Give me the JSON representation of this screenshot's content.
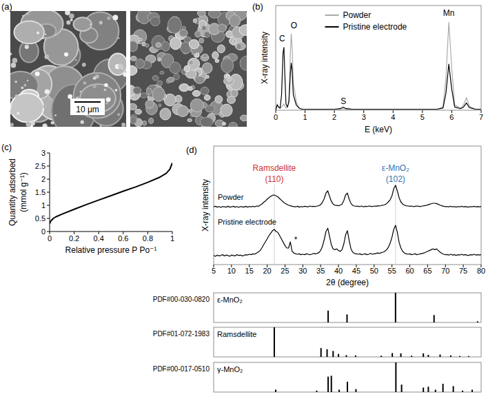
{
  "chart_data": [
    {
      "type": "image",
      "panel_label": "(a)",
      "annotation": "10 μm"
    },
    {
      "type": "line",
      "panel_label": "(b)",
      "x_label": "E (keV)",
      "y_label": "X-ray intensity",
      "x": [
        0,
        0.05,
        0.1,
        0.15,
        0.2,
        0.25,
        0.28,
        0.31,
        0.35,
        0.4,
        0.45,
        0.5,
        0.53,
        0.56,
        0.6,
        0.65,
        0.7,
        0.8,
        0.9,
        1.0,
        1.5,
        2.0,
        2.2,
        2.3,
        2.4,
        2.6,
        3.0,
        4.0,
        5.0,
        5.5,
        5.7,
        5.8,
        5.9,
        6.0,
        6.1,
        6.3,
        6.4,
        6.5,
        6.6,
        6.8,
        7.0
      ],
      "series": [
        {
          "name": "Powder",
          "color": "#aaaaaa",
          "values": [
            0,
            6,
            3,
            2,
            3,
            5,
            6,
            4,
            2,
            3,
            10,
            55,
            73,
            60,
            25,
            18,
            8,
            2,
            1,
            1,
            1,
            1,
            1,
            1.5,
            1,
            1,
            1,
            1,
            1,
            1,
            3,
            30,
            84,
            40,
            5,
            2,
            5,
            12,
            4,
            1,
            1
          ]
        },
        {
          "name": "Pristine electrode",
          "color": "#000000",
          "values": [
            0,
            5,
            3,
            2,
            15,
            55,
            60,
            35,
            6,
            3,
            8,
            35,
            45,
            38,
            15,
            10,
            5,
            2,
            1,
            1,
            1,
            1,
            1.5,
            3,
            1.5,
            1,
            1,
            1,
            1,
            1,
            2,
            16,
            44,
            20,
            3,
            1.5,
            3,
            7,
            2.5,
            1,
            1
          ]
        }
      ],
      "xlim": [
        0,
        7
      ],
      "xticks": [
        0,
        1,
        2,
        3,
        4,
        5,
        6,
        7
      ],
      "ylim": [
        0,
        100
      ],
      "tick_labels": "x",
      "legend": "top",
      "annotations": [
        {
          "text": "C",
          "x": 0.22,
          "y": 66
        },
        {
          "text": "O",
          "x": 0.62,
          "y": 78
        },
        {
          "text": "S",
          "x": 2.31,
          "y": 6
        },
        {
          "text": "Mn",
          "x": 5.9,
          "y": 90
        }
      ]
    },
    {
      "type": "line",
      "panel_label": "(c)",
      "x_label": "Relative pressure P Po⁻¹",
      "y_label": [
        "Quantity adsorbed",
        "(mmol g⁻¹)"
      ],
      "x": [
        0,
        0.01,
        0.03,
        0.05,
        0.1,
        0.2,
        0.3,
        0.4,
        0.5,
        0.6,
        0.7,
        0.8,
        0.9,
        0.95,
        0.98,
        1.0
      ],
      "series": [
        {
          "color": "#000000",
          "values": [
            0.3,
            0.4,
            0.5,
            0.56,
            0.66,
            0.85,
            1.03,
            1.2,
            1.37,
            1.54,
            1.7,
            1.88,
            2.08,
            2.22,
            2.38,
            2.62
          ]
        }
      ],
      "xlim": [
        0,
        1
      ],
      "xticks": [
        0,
        0.2,
        0.4,
        0.6,
        0.8,
        1
      ],
      "ylim": [
        0,
        3
      ],
      "yticks": [
        0,
        0.5,
        1,
        1.5,
        2,
        2.5,
        3
      ]
    },
    {
      "type": "line",
      "panel_label": "(d)",
      "x_label": "2θ (degree)",
      "y_label": "X-ray intensity",
      "x": [
        5,
        5.5,
        6,
        6.5,
        7,
        7.5,
        8,
        8.5,
        9,
        9.5,
        10,
        10.5,
        11,
        11.5,
        12,
        12.5,
        13,
        13.5,
        14,
        14.5,
        15,
        15.5,
        16,
        16.5,
        17,
        17.5,
        18,
        18.5,
        19,
        19.5,
        20,
        20.5,
        21,
        21.5,
        22,
        22.5,
        23,
        23.5,
        24,
        24.5,
        25,
        25.5,
        26,
        26.5,
        27,
        27.5,
        28,
        28.5,
        29,
        29.5,
        30,
        30.5,
        31,
        31.5,
        32,
        32.5,
        33,
        33.5,
        34,
        34.5,
        35,
        35.5,
        36,
        36.5,
        37,
        37.5,
        38,
        38.5,
        39,
        39.5,
        40,
        40.5,
        41,
        41.5,
        42,
        42.5,
        43,
        43.5,
        44,
        44.5,
        45,
        45.5,
        46,
        46.5,
        47,
        47.5,
        48,
        48.5,
        49,
        49.5,
        50,
        50.5,
        51,
        51.5,
        52,
        52.5,
        53,
        53.5,
        54,
        54.5,
        55,
        55.5,
        56,
        56.5,
        57,
        57.5,
        58,
        58.5,
        59,
        59.5,
        60,
        60.5,
        61,
        61.5,
        62,
        62.5,
        63,
        63.5,
        64,
        64.5,
        65,
        65.5,
        66,
        66.5,
        67,
        67.5,
        68,
        68.5,
        69,
        69.5,
        70,
        70.5,
        71,
        71.5,
        72,
        72.5,
        73,
        73.5,
        74,
        74.5,
        75,
        75.5,
        76,
        76.5,
        77,
        77.5,
        78,
        78.5,
        79,
        79.5,
        80
      ],
      "series": [
        {
          "name": "Powder",
          "color": "#000000",
          "values": [
            12,
            14,
            11,
            13,
            10,
            13,
            12,
            11,
            14,
            11,
            12,
            14,
            11,
            13,
            10,
            13,
            12,
            11,
            14,
            11,
            13,
            12,
            14,
            12,
            15,
            14,
            18,
            22,
            28,
            33,
            40,
            45,
            50,
            54,
            55,
            52,
            48,
            42,
            36,
            30,
            25,
            21,
            18,
            16,
            14,
            13,
            12,
            14,
            11,
            13,
            12,
            14,
            13,
            12,
            15,
            13,
            14,
            13,
            15,
            16,
            20,
            28,
            42,
            62,
            70,
            50,
            32,
            22,
            18,
            17,
            16,
            18,
            22,
            35,
            55,
            62,
            40,
            24,
            17,
            15,
            14,
            14,
            13,
            15,
            12,
            14,
            13,
            15,
            14,
            13,
            15,
            14,
            16,
            15,
            17,
            18,
            20,
            24,
            30,
            38,
            52,
            78,
            90,
            70,
            45,
            30,
            22,
            18,
            16,
            15,
            14,
            15,
            13,
            14,
            15,
            14,
            13,
            15,
            16,
            17,
            19,
            21,
            23,
            25,
            25,
            24,
            21,
            18,
            16,
            14,
            13,
            13,
            12,
            14,
            12,
            13,
            11,
            13,
            12,
            14,
            12,
            13,
            12,
            11,
            13,
            12,
            14,
            12,
            13,
            12,
            13
          ]
        },
        {
          "name": "Pristine electrode",
          "color": "#000000",
          "values": [
            12,
            10,
            13,
            11,
            12,
            14,
            11,
            13,
            12,
            10,
            13,
            12,
            11,
            14,
            12,
            13,
            11,
            12,
            14,
            13,
            15,
            14,
            16,
            15,
            18,
            20,
            24,
            30,
            38,
            45,
            52,
            60,
            66,
            72,
            75,
            70,
            68,
            60,
            52,
            44,
            36,
            30,
            30,
            45,
            22,
            18,
            16,
            15,
            16,
            14,
            15,
            14,
            16,
            15,
            14,
            15,
            17,
            16,
            17,
            19,
            24,
            34,
            50,
            70,
            78,
            58,
            38,
            28,
            26,
            28,
            24,
            22,
            26,
            40,
            62,
            72,
            48,
            28,
            20,
            17,
            16,
            15,
            16,
            14,
            15,
            16,
            14,
            15,
            17,
            15,
            16,
            17,
            18,
            17,
            19,
            20,
            22,
            26,
            32,
            42,
            56,
            75,
            85,
            68,
            44,
            30,
            22,
            18,
            16,
            15,
            16,
            14,
            15,
            16,
            14,
            15,
            16,
            17,
            18,
            20,
            22,
            24,
            26,
            28,
            26,
            28,
            24,
            20,
            17,
            15,
            14,
            14,
            13,
            15,
            13,
            14,
            12,
            14,
            13,
            15,
            13,
            14,
            13,
            12,
            14,
            13,
            15,
            13,
            14,
            13,
            14
          ]
        }
      ],
      "xlim": [
        5,
        80
      ],
      "xticks": [
        5,
        10,
        15,
        20,
        25,
        30,
        35,
        40,
        45,
        50,
        55,
        60,
        65,
        70,
        75,
        80
      ],
      "ylim": [
        0,
        100
      ],
      "tick_labels": "x",
      "annotations": [
        {
          "lines": [
            "Ramsdellite",
            "(110)"
          ],
          "x": 22,
          "color": "#d0312d"
        },
        {
          "lines": [
            "ε-MnO₂",
            "(102)"
          ],
          "x": 56,
          "color": "#2e75b6"
        },
        {
          "lines": [
            "*"
          ],
          "x": 28,
          "y": 44,
          "series": 1
        }
      ]
    },
    {
      "type": "stick",
      "label": "PDF#00-030-0820",
      "title": "ε-MnO₂",
      "color": "#000000",
      "x": [
        37.1,
        42.4,
        56.0,
        66.8,
        79.0
      ],
      "values": [
        40,
        27,
        100,
        25,
        4
      ],
      "xlim": [
        5,
        80
      ],
      "ylim": [
        0,
        100
      ],
      "tick_labels": false
    },
    {
      "type": "stick",
      "label": "PDF#01-072-1983",
      "title": "Ramsdellite",
      "color": "#000000",
      "x": [
        22.0,
        35.1,
        36.8,
        38.5,
        40.0,
        42.2,
        44.8,
        52.0,
        55.1,
        57.5,
        60.5,
        63.8,
        65.2,
        68.5,
        71.5,
        74.0,
        76.5
      ],
      "values": [
        100,
        30,
        26,
        20,
        10,
        6,
        5,
        4,
        13,
        12,
        4,
        12,
        7,
        8,
        5,
        3,
        3
      ],
      "xlim": [
        5,
        80
      ],
      "ylim": [
        0,
        100
      ],
      "tick_labels": false
    },
    {
      "type": "stick",
      "label": "PDF#00-017-0510",
      "title": "γ-MnO₂",
      "color": "#000000",
      "x": [
        22.4,
        33.9,
        37.1,
        38.0,
        40.2,
        42.5,
        44.9,
        56.1,
        57.7,
        63.8,
        65.2,
        67.2,
        69.3,
        72.2,
        74.8,
        77.5
      ],
      "values": [
        8,
        5,
        52,
        55,
        8,
        35,
        10,
        100,
        25,
        15,
        18,
        8,
        28,
        20,
        5,
        8
      ],
      "xlim": [
        5,
        80
      ],
      "ylim": [
        0,
        100
      ],
      "tick_labels": false
    }
  ]
}
